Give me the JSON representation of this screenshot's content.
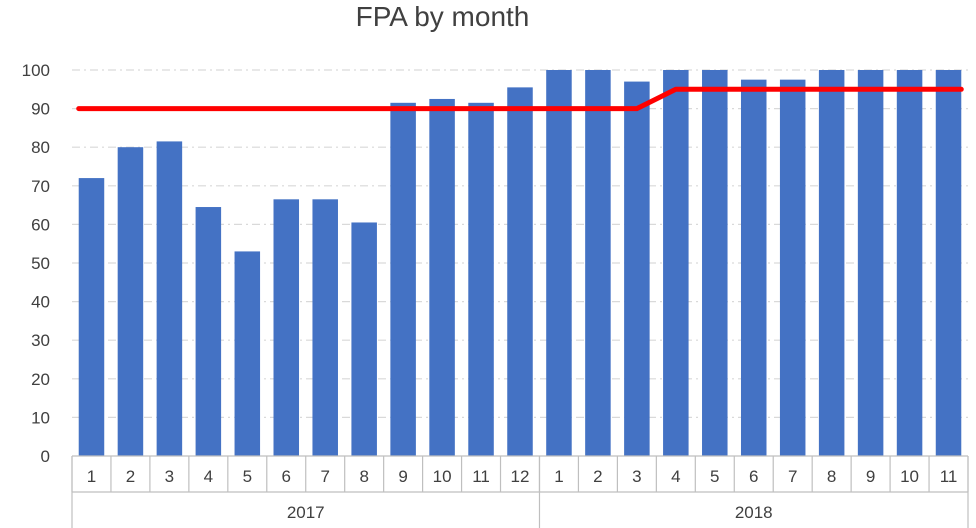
{
  "chart_data": {
    "type": "bar",
    "title": "FPA by month",
    "groups": [
      {
        "label": "2017",
        "categories": [
          "1",
          "2",
          "3",
          "4",
          "5",
          "6",
          "7",
          "8",
          "9",
          "10",
          "11",
          "12"
        ]
      },
      {
        "label": "2018",
        "categories": [
          "1",
          "2",
          "3",
          "4",
          "5",
          "6",
          "7",
          "8",
          "9",
          "10",
          "11"
        ]
      }
    ],
    "series": [
      {
        "type": "bar",
        "values": [
          72,
          80,
          81.5,
          64.5,
          53,
          66.5,
          66.5,
          60.5,
          91.5,
          92.5,
          91.5,
          95.5,
          100,
          100,
          97,
          100,
          100,
          97.5,
          97.5,
          100,
          100,
          100,
          100
        ],
        "color": "#4472C4"
      },
      {
        "type": "line",
        "values": [
          90,
          90,
          90,
          90,
          90,
          90,
          90,
          90,
          90,
          90,
          90,
          90,
          90,
          90,
          90,
          95,
          95,
          95,
          95,
          95,
          95,
          95,
          95
        ],
        "color": "#FF0000"
      }
    ],
    "ylim": [
      0,
      100
    ],
    "yticks": [
      0,
      10,
      20,
      30,
      40,
      50,
      60,
      70,
      80,
      90,
      100
    ],
    "grid": true,
    "grid_color": "#D9D9D9",
    "text_color": "#404040"
  }
}
